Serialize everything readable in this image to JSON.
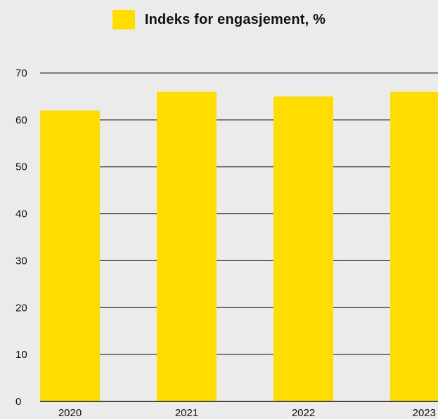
{
  "chart_data": {
    "type": "bar",
    "categories": [
      "2020",
      "2021",
      "2022",
      "2023"
    ],
    "series": [
      {
        "name": "Indeks for engasjement, %",
        "values": [
          62,
          66,
          65,
          66
        ]
      }
    ],
    "title": "",
    "xlabel": "",
    "ylabel": "",
    "ylim": [
      0,
      70
    ],
    "yticks": [
      0,
      10,
      20,
      30,
      40,
      50,
      60,
      70
    ],
    "grid": true,
    "legend_position": "top-center",
    "colors": {
      "bar": "#FFDD00",
      "gridline": "#111111",
      "background": "#EBEBEB"
    }
  }
}
